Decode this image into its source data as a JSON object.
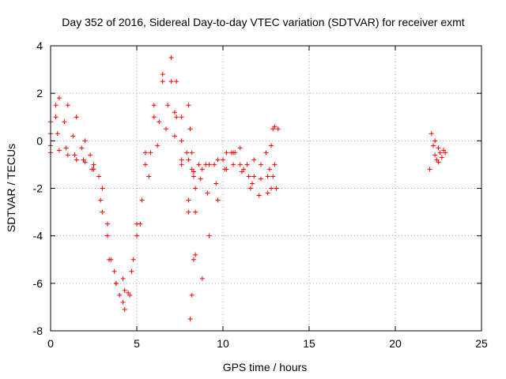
{
  "chart_data": {
    "type": "scatter",
    "title": "Day 352 of 2016, Sidereal Day-to-day VTEC variation (SDTVAR) for receiver exmt",
    "xlabel": "GPS time / hours",
    "ylabel": "SDTVAR / TECUs",
    "xlim": [
      0,
      25
    ],
    "ylim": [
      -8,
      4
    ],
    "x_ticks": [
      0,
      5,
      10,
      15,
      20,
      25
    ],
    "y_ticks": [
      -8,
      -6,
      -4,
      -2,
      0,
      2,
      4
    ],
    "grid": true,
    "marker": "+",
    "color": "#ff0000",
    "series": [
      {
        "points": [
          [
            0.0,
            0.3
          ],
          [
            0.3,
            1.5
          ],
          [
            0.5,
            1.8
          ],
          [
            1.0,
            1.5
          ],
          [
            1.5,
            1.0
          ],
          [
            2.0,
            0.0
          ],
          [
            2.5,
            -1.0
          ],
          [
            3.0,
            -3.0
          ],
          [
            3.5,
            -5.0
          ],
          [
            4.0,
            -6.5
          ],
          [
            4.3,
            -7.1
          ],
          [
            4.6,
            -6.5
          ],
          [
            5.0,
            -4.0
          ],
          [
            5.5,
            -1.0
          ],
          [
            6.0,
            1.0
          ],
          [
            6.5,
            2.8
          ],
          [
            7.0,
            3.5
          ],
          [
            7.3,
            2.5
          ],
          [
            7.6,
            1.0
          ],
          [
            7.9,
            -0.5
          ],
          [
            8.2,
            -1.2
          ],
          [
            8.6,
            -1.0
          ],
          [
            9.0,
            -1.0
          ],
          [
            9.5,
            -1.0
          ],
          [
            10.0,
            -0.8
          ],
          [
            10.5,
            -0.5
          ],
          [
            11.0,
            -1.0
          ],
          [
            11.5,
            -1.5
          ]
        ]
      },
      {
        "points": [
          [
            0.0,
            0.8
          ],
          [
            0.3,
            1.0
          ],
          [
            0.8,
            0.8
          ],
          [
            1.3,
            0.2
          ],
          [
            1.8,
            -0.3
          ],
          [
            2.3,
            -0.6
          ],
          [
            2.8,
            -1.5
          ],
          [
            3.3,
            -4.0
          ],
          [
            3.8,
            -6.0
          ],
          [
            4.2,
            -6.8
          ],
          [
            4.5,
            -6.4
          ],
          [
            5.0,
            -3.5
          ],
          [
            5.5,
            -0.5
          ],
          [
            6.0,
            1.5
          ],
          [
            6.5,
            2.5
          ],
          [
            7.0,
            2.5
          ],
          [
            7.3,
            1.0
          ],
          [
            7.6,
            -0.8
          ],
          [
            8.0,
            -2.5
          ],
          [
            8.4,
            -2.0
          ],
          [
            8.8,
            -1.2
          ],
          [
            9.2,
            -1.0
          ],
          [
            9.7,
            -0.8
          ],
          [
            10.2,
            -0.5
          ],
          [
            10.7,
            -0.5
          ],
          [
            11.2,
            -1.2
          ],
          [
            11.7,
            -1.8
          ],
          [
            12.2,
            -1.6
          ]
        ]
      },
      {
        "points": [
          [
            0.0,
            -0.2
          ],
          [
            0.4,
            0.3
          ],
          [
            0.9,
            -0.3
          ],
          [
            1.4,
            -0.6
          ],
          [
            1.9,
            -0.8
          ],
          [
            2.4,
            -1.2
          ],
          [
            2.9,
            -2.5
          ],
          [
            3.4,
            -5.0
          ],
          [
            3.8,
            -6.0
          ],
          [
            4.3,
            -6.3
          ],
          [
            4.8,
            -5.0
          ],
          [
            5.3,
            -2.5
          ],
          [
            5.8,
            -0.5
          ],
          [
            6.3,
            0.8
          ],
          [
            6.8,
            1.5
          ],
          [
            7.2,
            1.2
          ],
          [
            7.6,
            0.0
          ],
          [
            8.0,
            -0.8
          ],
          [
            8.3,
            -1.3
          ],
          [
            8.7,
            -1.6
          ],
          [
            9.1,
            -2.2
          ],
          [
            9.6,
            -1.8
          ],
          [
            10.1,
            -1.2
          ],
          [
            10.6,
            -1.0
          ],
          [
            11.1,
            -1.3
          ],
          [
            11.6,
            -2.0
          ],
          [
            12.1,
            -2.3
          ],
          [
            12.6,
            -1.5
          ]
        ]
      },
      {
        "points": [
          [
            0.0,
            -0.5
          ],
          [
            0.5,
            -0.4
          ],
          [
            1.0,
            -0.6
          ],
          [
            1.5,
            -0.8
          ],
          [
            2.0,
            -0.9
          ],
          [
            2.5,
            -1.2
          ],
          [
            3.0,
            -2.0
          ],
          [
            3.3,
            -3.5
          ],
          [
            3.7,
            -5.5
          ],
          [
            4.2,
            -5.8
          ],
          [
            4.7,
            -5.5
          ],
          [
            5.2,
            -3.5
          ],
          [
            5.7,
            -1.5
          ],
          [
            6.2,
            -0.2
          ],
          [
            6.7,
            0.5
          ],
          [
            7.2,
            0.2
          ],
          [
            7.6,
            -1.0
          ],
          [
            8.0,
            -3.0
          ],
          [
            8.4,
            -4.8
          ],
          [
            8.8,
            -5.8
          ],
          [
            9.2,
            -4.0
          ],
          [
            9.7,
            -2.5
          ],
          [
            10.2,
            -1.2
          ],
          [
            10.6,
            -0.5
          ],
          [
            11.0,
            -0.3
          ],
          [
            11.4,
            -1.0
          ],
          [
            11.8,
            -1.5
          ]
        ]
      },
      {
        "points": [
          [
            8.0,
            1.5
          ],
          [
            8.1,
            0.5
          ],
          [
            8.2,
            -0.5
          ],
          [
            8.3,
            -1.5
          ],
          [
            8.4,
            -3.0
          ],
          [
            8.3,
            -5.0
          ],
          [
            8.2,
            -6.5
          ],
          [
            8.1,
            -7.5
          ]
        ]
      },
      {
        "points": [
          [
            11.8,
            -0.8
          ],
          [
            12.2,
            -1.0
          ],
          [
            12.5,
            -0.5
          ],
          [
            12.8,
            -0.2
          ],
          [
            12.9,
            0.5
          ],
          [
            13.0,
            0.6
          ],
          [
            13.2,
            0.5
          ],
          [
            13.0,
            -1.0
          ],
          [
            12.9,
            -1.5
          ],
          [
            12.8,
            -2.0
          ],
          [
            12.6,
            -2.2
          ],
          [
            13.1,
            -2.0
          ],
          [
            12.7,
            -1.2
          ]
        ]
      },
      {
        "points": [
          [
            22.0,
            -1.2
          ],
          [
            22.1,
            0.3
          ],
          [
            22.2,
            -0.2
          ],
          [
            22.3,
            -0.6
          ],
          [
            22.4,
            -0.8
          ],
          [
            22.5,
            -0.3
          ],
          [
            22.6,
            -0.5
          ],
          [
            22.7,
            -0.7
          ],
          [
            22.8,
            -0.4
          ],
          [
            22.9,
            -0.5
          ],
          [
            22.3,
            0.0
          ],
          [
            22.5,
            -0.9
          ]
        ]
      }
    ]
  }
}
